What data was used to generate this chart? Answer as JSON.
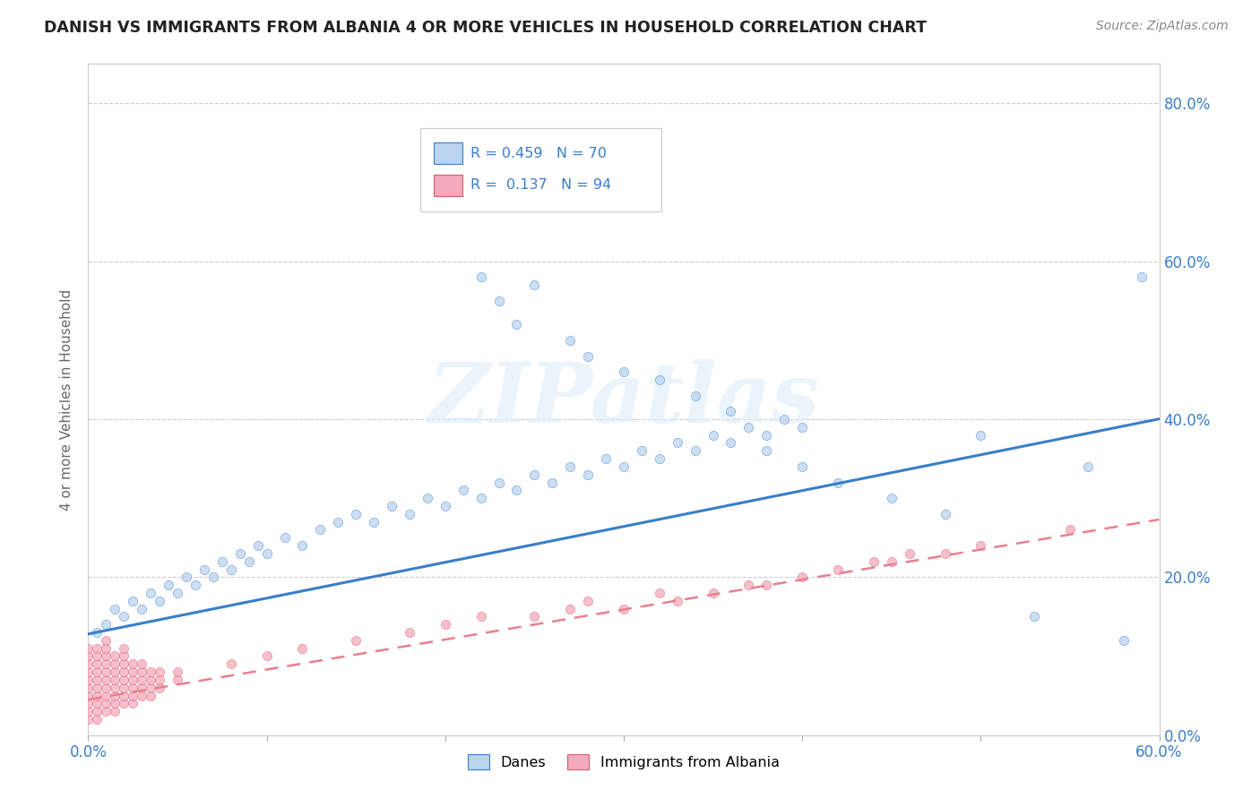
{
  "title": "DANISH VS IMMIGRANTS FROM ALBANIA 4 OR MORE VEHICLES IN HOUSEHOLD CORRELATION CHART",
  "source": "Source: ZipAtlas.com",
  "ylabel": "4 or more Vehicles in Household",
  "xmin": 0.0,
  "xmax": 0.6,
  "ymin": 0.0,
  "ymax": 0.85,
  "legend_r1": "R = 0.459",
  "legend_n1": "N = 70",
  "legend_r2": "R = 0.137",
  "legend_n2": "N = 94",
  "danes_color": "#bad4f0",
  "albania_color": "#f5aabb",
  "danes_line_color": "#3a7ec8",
  "albania_line_color": "#e8808e",
  "watermark": "ZIPatlas",
  "danes_intercept": 0.128,
  "danes_slope": 0.454,
  "albania_intercept": 0.045,
  "albania_slope": 0.38,
  "danes_x": [
    0.005,
    0.01,
    0.015,
    0.02,
    0.025,
    0.03,
    0.035,
    0.04,
    0.045,
    0.05,
    0.055,
    0.06,
    0.065,
    0.07,
    0.075,
    0.08,
    0.085,
    0.09,
    0.095,
    0.1,
    0.11,
    0.12,
    0.13,
    0.14,
    0.15,
    0.16,
    0.17,
    0.18,
    0.19,
    0.2,
    0.21,
    0.22,
    0.23,
    0.24,
    0.25,
    0.26,
    0.27,
    0.28,
    0.29,
    0.3,
    0.31,
    0.32,
    0.33,
    0.34,
    0.35,
    0.36,
    0.37,
    0.38,
    0.39,
    0.4,
    0.22,
    0.23,
    0.24,
    0.25,
    0.27,
    0.28,
    0.3,
    0.32,
    0.34,
    0.36,
    0.38,
    0.4,
    0.42,
    0.45,
    0.48,
    0.5,
    0.53,
    0.56,
    0.58,
    0.59
  ],
  "danes_y": [
    0.13,
    0.14,
    0.16,
    0.15,
    0.17,
    0.16,
    0.18,
    0.17,
    0.19,
    0.18,
    0.2,
    0.19,
    0.21,
    0.2,
    0.22,
    0.21,
    0.23,
    0.22,
    0.24,
    0.23,
    0.25,
    0.24,
    0.26,
    0.27,
    0.28,
    0.27,
    0.29,
    0.28,
    0.3,
    0.29,
    0.31,
    0.3,
    0.32,
    0.31,
    0.33,
    0.32,
    0.34,
    0.33,
    0.35,
    0.34,
    0.36,
    0.35,
    0.37,
    0.36,
    0.38,
    0.37,
    0.39,
    0.38,
    0.4,
    0.39,
    0.58,
    0.55,
    0.52,
    0.57,
    0.5,
    0.48,
    0.46,
    0.45,
    0.43,
    0.41,
    0.36,
    0.34,
    0.32,
    0.3,
    0.28,
    0.38,
    0.15,
    0.34,
    0.12,
    0.58
  ],
  "albania_x": [
    0.0,
    0.0,
    0.0,
    0.0,
    0.0,
    0.0,
    0.0,
    0.0,
    0.0,
    0.0,
    0.005,
    0.005,
    0.005,
    0.005,
    0.005,
    0.005,
    0.005,
    0.005,
    0.005,
    0.005,
    0.01,
    0.01,
    0.01,
    0.01,
    0.01,
    0.01,
    0.01,
    0.01,
    0.01,
    0.01,
    0.015,
    0.015,
    0.015,
    0.015,
    0.015,
    0.015,
    0.015,
    0.015,
    0.02,
    0.02,
    0.02,
    0.02,
    0.02,
    0.02,
    0.02,
    0.02,
    0.025,
    0.025,
    0.025,
    0.025,
    0.025,
    0.025,
    0.03,
    0.03,
    0.03,
    0.03,
    0.03,
    0.035,
    0.035,
    0.035,
    0.035,
    0.04,
    0.04,
    0.04,
    0.05,
    0.05,
    0.3,
    0.35,
    0.2,
    0.25,
    0.4,
    0.15,
    0.18,
    0.22,
    0.28,
    0.32,
    0.38,
    0.42,
    0.1,
    0.12,
    0.08,
    0.45,
    0.48,
    0.5,
    0.55,
    0.33,
    0.37,
    0.44,
    0.27,
    0.46
  ],
  "albania_y": [
    0.02,
    0.03,
    0.04,
    0.05,
    0.06,
    0.07,
    0.08,
    0.09,
    0.1,
    0.11,
    0.02,
    0.03,
    0.04,
    0.05,
    0.06,
    0.07,
    0.08,
    0.09,
    0.1,
    0.11,
    0.03,
    0.04,
    0.05,
    0.06,
    0.07,
    0.08,
    0.09,
    0.1,
    0.11,
    0.12,
    0.03,
    0.04,
    0.05,
    0.06,
    0.07,
    0.08,
    0.09,
    0.1,
    0.04,
    0.05,
    0.06,
    0.07,
    0.08,
    0.09,
    0.1,
    0.11,
    0.04,
    0.05,
    0.06,
    0.07,
    0.08,
    0.09,
    0.05,
    0.06,
    0.07,
    0.08,
    0.09,
    0.05,
    0.06,
    0.07,
    0.08,
    0.06,
    0.07,
    0.08,
    0.07,
    0.08,
    0.16,
    0.18,
    0.14,
    0.15,
    0.2,
    0.12,
    0.13,
    0.15,
    0.17,
    0.18,
    0.19,
    0.21,
    0.1,
    0.11,
    0.09,
    0.22,
    0.23,
    0.24,
    0.26,
    0.17,
    0.19,
    0.22,
    0.16,
    0.23
  ]
}
